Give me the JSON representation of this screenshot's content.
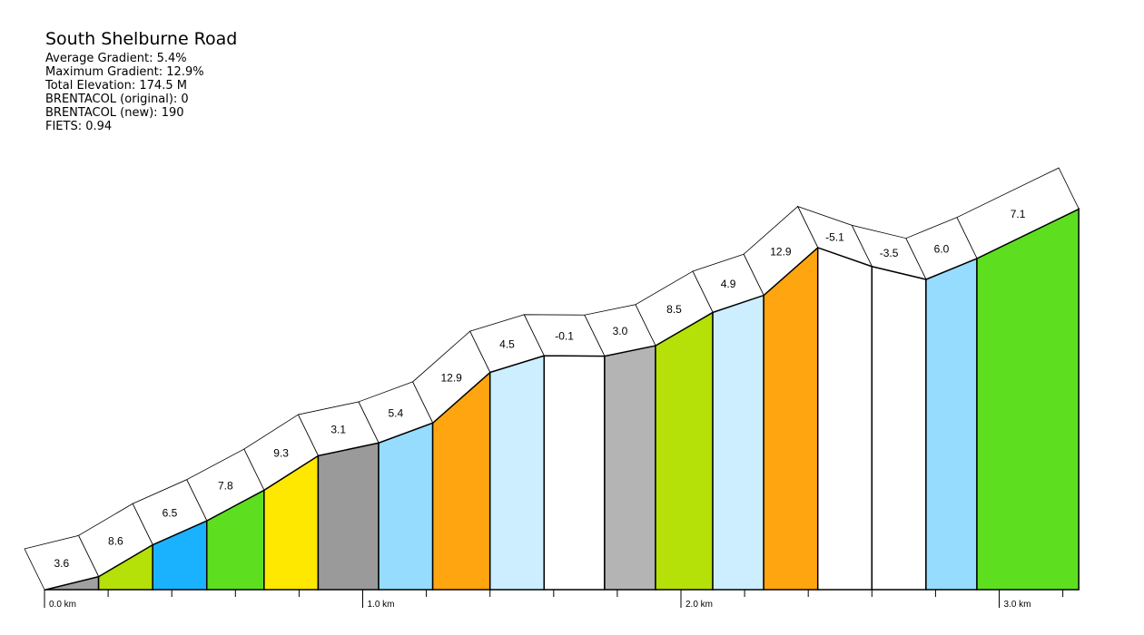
{
  "header": {
    "title": "South Shelburne Road",
    "stats": [
      "Average Gradient: 5.4%",
      "Maximum Gradient: 12.9%",
      "Total Elevation: 174.5 M",
      "BRENTACOL (original): 0",
      "BRENTACOL (new): 190",
      "FIETS: 0.94"
    ]
  },
  "chart_data": {
    "type": "area",
    "title": "South Shelburne Road",
    "xlabel": "",
    "ylabel": "",
    "xlim": [
      0,
      3.25
    ],
    "tick_labels": [
      "0.0 km",
      "1.0 km",
      "2.0 km",
      "3.0 km"
    ],
    "tick_values": [
      0,
      1,
      2,
      3
    ],
    "grid": false,
    "segments": [
      {
        "start": 0.0,
        "end": 0.17,
        "gradient": "3.6",
        "color": "#a0a0a0"
      },
      {
        "start": 0.17,
        "end": 0.34,
        "gradient": "8.6",
        "color": "#b5e008"
      },
      {
        "start": 0.34,
        "end": 0.51,
        "gradient": "6.5",
        "color": "#1ab2ff"
      },
      {
        "start": 0.51,
        "end": 0.69,
        "gradient": "7.8",
        "color": "#5ddf20"
      },
      {
        "start": 0.69,
        "end": 0.86,
        "gradient": "9.3",
        "color": "#ffe800"
      },
      {
        "start": 0.86,
        "end": 1.05,
        "gradient": "3.1",
        "color": "#9a9a9a"
      },
      {
        "start": 1.05,
        "end": 1.22,
        "gradient": "5.4",
        "color": "#96dcff"
      },
      {
        "start": 1.22,
        "end": 1.4,
        "gradient": "12.9",
        "color": "#ffa510"
      },
      {
        "start": 1.4,
        "end": 1.57,
        "gradient": "4.5",
        "color": "#cceeff"
      },
      {
        "start": 1.57,
        "end": 1.76,
        "gradient": "-0.1",
        "color": "#ffffff"
      },
      {
        "start": 1.76,
        "end": 1.92,
        "gradient": "3.0",
        "color": "#b4b4b4"
      },
      {
        "start": 1.92,
        "end": 2.1,
        "gradient": "8.5",
        "color": "#b5e008"
      },
      {
        "start": 2.1,
        "end": 2.26,
        "gradient": "4.9",
        "color": "#cceeff"
      },
      {
        "start": 2.26,
        "end": 2.43,
        "gradient": "12.9",
        "color": "#ffa510"
      },
      {
        "start": 2.43,
        "end": 2.6,
        "gradient": "-5.1",
        "color": "#ffffff"
      },
      {
        "start": 2.6,
        "end": 2.77,
        "gradient": "-3.5",
        "color": "#ffffff"
      },
      {
        "start": 2.77,
        "end": 2.93,
        "gradient": "6.0",
        "color": "#96dcff"
      },
      {
        "start": 2.93,
        "end": 3.25,
        "gradient": "7.1",
        "color": "#5ddf20"
      }
    ]
  }
}
